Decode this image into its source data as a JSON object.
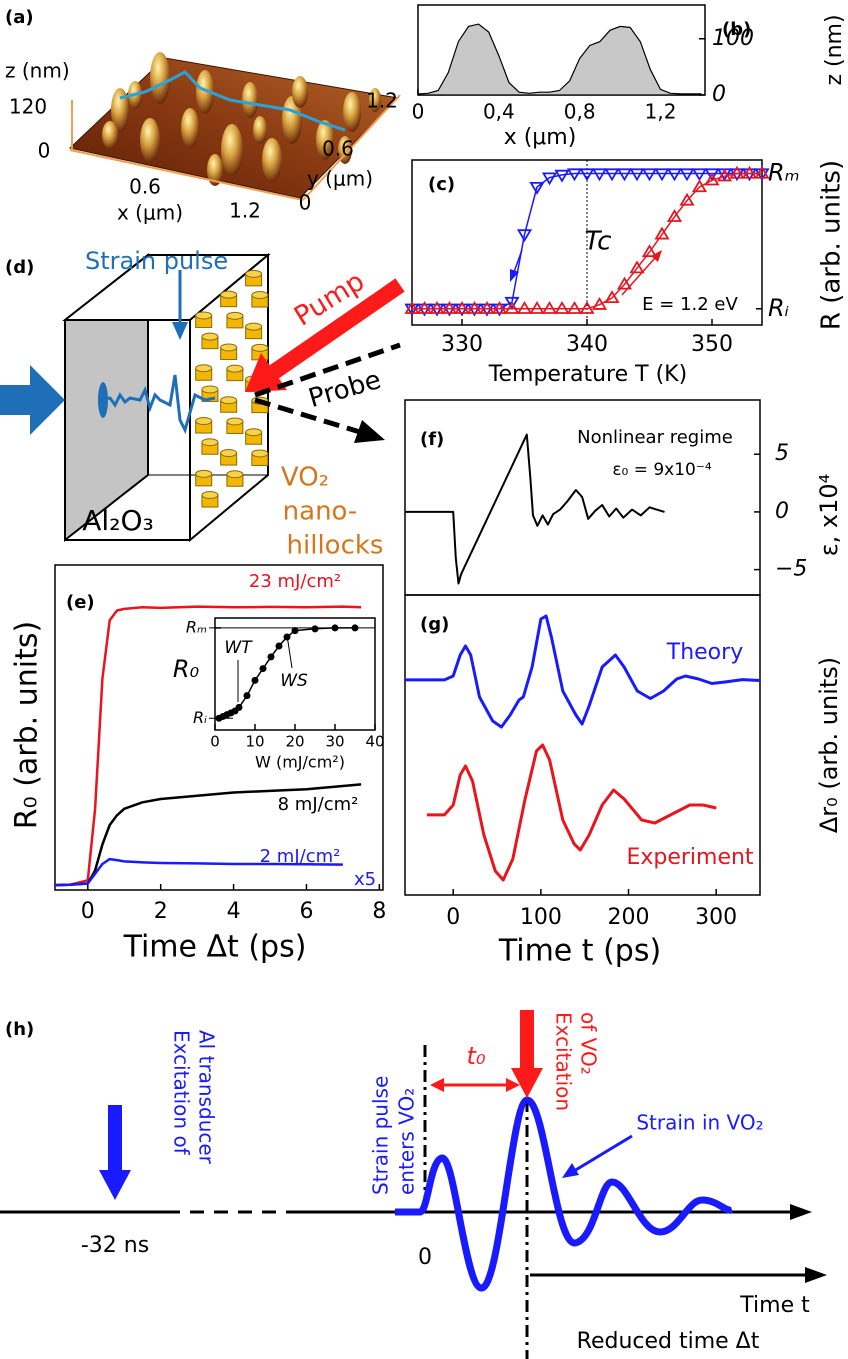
{
  "panel_labels": [
    "(a)",
    "(b)",
    "(c)",
    "(d)",
    "(e)",
    "(f)",
    "(g)",
    "(h)"
  ],
  "panel_a": {
    "z_label": "z (nm)",
    "z_ticks": [
      "120",
      "0"
    ],
    "x_label": "x (μm)",
    "x_ticks": [
      "0.6",
      "1.2"
    ],
    "y_label": "y (μm)",
    "y_ticks": [
      "0",
      "0.6",
      "1.2"
    ]
  },
  "panel_d": {
    "strain_pulse": "Strain pulse",
    "pump": "Pump",
    "probe": "Probe",
    "hillocks": [
      "VO₂",
      "nano-",
      "hillocks"
    ],
    "substrate": "Al₂O₃"
  },
  "panel_h": {
    "al_excitation": [
      "Excitation of",
      "Al transducer"
    ],
    "al_time": "-32 ns",
    "strain_enters": [
      "Strain pulse",
      "enters VO₂"
    ],
    "t0": "t₀",
    "vo2_excitation": [
      "Excitation",
      "of VO₂"
    ],
    "strain_in": "Strain in VO₂",
    "zero": "0",
    "time_t": "Time t",
    "reduced_time": "Reduced time Δt"
  },
  "chart_data": [
    {
      "type": "area",
      "color": "#c8c8c8",
      "x": [
        0,
        0.05,
        0.1,
        0.15,
        0.2,
        0.25,
        0.3,
        0.35,
        0.4,
        0.45,
        0.5,
        0.55,
        0.6,
        0.65,
        0.7,
        0.75,
        0.8,
        0.85,
        0.9,
        0.95,
        1.0,
        1.05,
        1.1,
        1.15,
        1.2,
        1.25,
        1.3,
        1.35,
        1.4
      ],
      "values": [
        2,
        3,
        8,
        40,
        95,
        122,
        126,
        112,
        70,
        22,
        5,
        3,
        5,
        5,
        8,
        25,
        65,
        88,
        95,
        115,
        122,
        120,
        95,
        45,
        10,
        3,
        2,
        2,
        2
      ],
      "xlim": [
        0,
        1.42
      ],
      "ylim": [
        0,
        160
      ],
      "xticks": [
        0,
        {
          "value": 0.4,
          "label": "0,4"
        },
        {
          "value": 0.8,
          "label": "0,8"
        },
        {
          "value": 1.2,
          "label": "1,2"
        }
      ],
      "yticks": [
        0,
        100
      ],
      "x_label": "x (μm)",
      "y_label": "z (nm)"
    },
    {
      "type": "line",
      "x": [
        326,
        327,
        328,
        329,
        330,
        331,
        332,
        333,
        334,
        335,
        336,
        337,
        338,
        339,
        340,
        341,
        342,
        343,
        344,
        345,
        346,
        347,
        348,
        349,
        350,
        351,
        352,
        353,
        354
      ],
      "series": [
        {
          "color": "#1a1aff",
          "marker": "triangle-down",
          "values": [
            0,
            0,
            0,
            0,
            0,
            0,
            0,
            0,
            0.05,
            0.55,
            0.9,
            0.97,
            0.99,
            1,
            1,
            1,
            1,
            1,
            1,
            1,
            1,
            1,
            1,
            1,
            1,
            1,
            1,
            1,
            1
          ]
        },
        {
          "color": "#e8141e",
          "marker": "triangle-up",
          "values": [
            0,
            0,
            0,
            0,
            0,
            0,
            0,
            0,
            0,
            0,
            0,
            0,
            0,
            0,
            0,
            0.03,
            0.08,
            0.18,
            0.3,
            0.42,
            0.55,
            0.68,
            0.8,
            0.9,
            0.95,
            0.98,
            1,
            1,
            1
          ]
        }
      ],
      "xlim": [
        326,
        354
      ],
      "ylim": [
        -0.12,
        1.1
      ],
      "xticks": [
        330,
        340,
        350
      ],
      "yticks": [
        {
          "value": 0,
          "label": "Rᵢ"
        },
        {
          "value": 1,
          "label": "Rₘ"
        }
      ],
      "x_label": "Temperature T (K)",
      "y_label": "R (arb. units)",
      "annotations": [
        "Tc",
        "E = 1.2 eV"
      ]
    },
    {
      "type": "line",
      "x": [
        -0.9,
        -0.5,
        0,
        0.2,
        0.4,
        0.6,
        0.8,
        1,
        1.5,
        2,
        3,
        4,
        5,
        6,
        7,
        7.5
      ],
      "series": [
        {
          "name": "23 mJ/cm²",
          "color": "#e8141e",
          "values": [
            0.015,
            0.016,
            0.03,
            0.25,
            0.65,
            0.83,
            0.86,
            0.865,
            0.87,
            0.868,
            0.872,
            0.87,
            0.871,
            0.87,
            0.872,
            0.87
          ]
        },
        {
          "name": "8 mJ/cm²",
          "color": "#000000",
          "values": [
            0.015,
            0.016,
            0.02,
            0.06,
            0.14,
            0.2,
            0.23,
            0.25,
            0.27,
            0.28,
            0.29,
            0.3,
            0.305,
            0.31,
            0.32,
            0.325
          ]
        },
        {
          "name": "2 mJ/cm²",
          "color": "#1a1aff",
          "values": [
            0.015,
            0.016,
            0.02,
            0.05,
            0.08,
            0.095,
            0.092,
            0.088,
            0.085,
            0.083,
            0.082,
            0.08,
            0.08,
            0.079,
            0.078,
            null
          ]
        }
      ],
      "xlim": [
        -0.9,
        8.1
      ],
      "ylim": [
        0,
        1
      ],
      "xticks": [
        0,
        2,
        4,
        6,
        8
      ],
      "x_label": "Time Δt (ps)",
      "y_label": "R₀ (arb. units)",
      "annotations": [
        "x5"
      ]
    },
    {
      "type": "scatter",
      "color": "#000000",
      "marker": "circle",
      "line": true,
      "x": [
        1,
        2,
        3,
        4,
        5,
        6,
        8,
        10,
        12,
        14,
        16,
        18,
        20,
        25,
        30,
        35
      ],
      "values": [
        0,
        0.02,
        0.04,
        0.06,
        0.08,
        0.12,
        0.25,
        0.42,
        0.55,
        0.68,
        0.8,
        0.9,
        0.97,
        0.99,
        1,
        1
      ],
      "xlim": [
        0,
        40
      ],
      "ylim": [
        -0.13,
        1.11
      ],
      "xticks": [
        0,
        10,
        20,
        30,
        40
      ],
      "yticks": [
        {
          "value": 0,
          "label": "Rᵢ"
        },
        {
          "value": 1,
          "label": "Rₘ"
        }
      ],
      "x_label": "W (mJ/cm²)",
      "y_label": "R₀",
      "annotations": [
        "WT",
        "WS"
      ]
    },
    {
      "type": "line",
      "color": "#000000",
      "x": [
        -55,
        -10,
        0,
        3,
        6,
        9,
        84,
        88,
        91,
        96,
        102,
        108,
        114,
        122,
        130,
        140,
        147,
        154,
        162,
        170,
        178,
        186,
        194,
        204,
        214,
        224,
        232,
        241
      ],
      "values": [
        0,
        0,
        0,
        -4,
        -6.2,
        -5.4,
        6.7,
        3,
        -0.3,
        -1.2,
        -0.3,
        -1.1,
        -0.2,
        0.2,
        0.9,
        1.9,
        1.3,
        -0.6,
        0.1,
        0.6,
        -0.4,
        0.3,
        -0.5,
        0.2,
        -0.3,
        0.4,
        0.2,
        0
      ],
      "xlim": [
        -55,
        350
      ],
      "ylim": [
        -7.2,
        9.7
      ],
      "yticks": [
        {
          "value": -5,
          "label": "−5"
        },
        0,
        5
      ],
      "y_label": "ε, x10⁴",
      "annotations": [
        "Nonlinear regime",
        "ε₀ = 9x10⁻⁴"
      ]
    },
    {
      "type": "line",
      "series": [
        {
          "name": "Theory",
          "color": "#1a1aff",
          "x": [
            -55,
            -10,
            0,
            8,
            14,
            20,
            30,
            45,
            55,
            65,
            75,
            80,
            90,
            100,
            106,
            112,
            125,
            140,
            147,
            155,
            170,
            185,
            195,
            210,
            225,
            240,
            255,
            265,
            280,
            295,
            310,
            330,
            350
          ],
          "values": [
            0.717,
            0.717,
            0.73,
            0.8,
            0.83,
            0.8,
            0.66,
            0.58,
            0.56,
            0.6,
            0.65,
            0.66,
            0.76,
            0.92,
            0.93,
            0.86,
            0.68,
            0.6,
            0.57,
            0.63,
            0.76,
            0.8,
            0.76,
            0.68,
            0.655,
            0.68,
            0.72,
            0.73,
            0.72,
            0.705,
            0.71,
            0.718,
            0.715
          ]
        },
        {
          "name": "Experiment",
          "color": "#e8141e",
          "x": [
            -30,
            -10,
            0,
            8,
            14,
            22,
            35,
            48,
            57,
            68,
            82,
            95,
            102,
            110,
            125,
            138,
            145,
            155,
            170,
            183,
            195,
            215,
            230,
            250,
            270,
            285,
            300
          ],
          "values": [
            0.267,
            0.267,
            0.3,
            0.4,
            0.43,
            0.38,
            0.2,
            0.08,
            0.05,
            0.12,
            0.32,
            0.48,
            0.5,
            0.45,
            0.25,
            0.17,
            0.15,
            0.2,
            0.3,
            0.35,
            0.32,
            0.25,
            0.24,
            0.27,
            0.3,
            0.3,
            0.29
          ]
        }
      ],
      "xlim": [
        -55,
        350
      ],
      "ylim": [
        0,
        1
      ],
      "xticks": [
        0,
        100,
        200,
        300
      ],
      "x_label": "Time t (ps)",
      "y_label": "Δr₀ (arb. units)"
    }
  ]
}
